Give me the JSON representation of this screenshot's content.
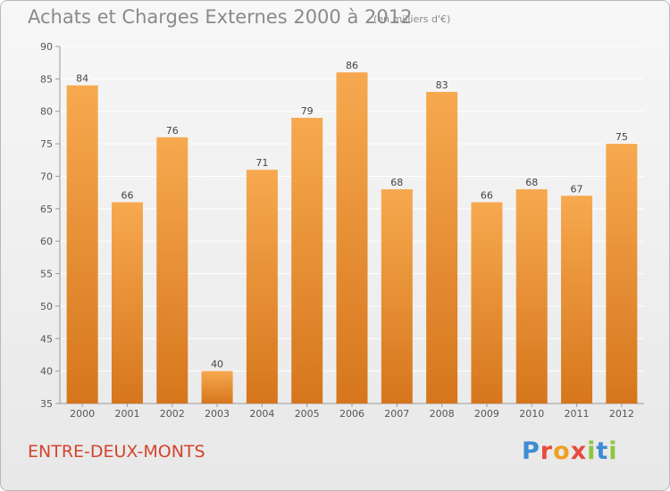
{
  "header": {
    "title": "Achats et Charges Externes 2000 à 2012",
    "unit": "(en milliers d'€)"
  },
  "footer": {
    "commune": "ENTRE-DEUX-MONTS",
    "brand": "Proxiti",
    "brand_colors": [
      "#3d8bd4",
      "#e84b3c",
      "#f0a020",
      "#e84b3c",
      "#8cc63f",
      "#3d8bd4",
      "#8cc63f"
    ]
  },
  "colors": {
    "bar_top": "#f7a94f",
    "bar_bottom": "#d6761c",
    "gridline": "#ffffff",
    "axis_text": "#555555",
    "label_text": "#444444"
  },
  "chart_data": {
    "type": "bar",
    "categories": [
      "2000",
      "2001",
      "2002",
      "2003",
      "2004",
      "2005",
      "2006",
      "2007",
      "2008",
      "2009",
      "2010",
      "2011",
      "2012"
    ],
    "values": [
      84,
      66,
      76,
      40,
      71,
      79,
      86,
      68,
      83,
      66,
      68,
      67,
      75
    ],
    "title": "Achats et Charges Externes 2000 à 2012",
    "subtitle": "(en milliers d'€)",
    "ylim": [
      35,
      90
    ],
    "yticks": [
      35,
      40,
      45,
      50,
      55,
      60,
      65,
      70,
      75,
      80,
      85,
      90
    ],
    "grid": true,
    "legend": "none"
  }
}
